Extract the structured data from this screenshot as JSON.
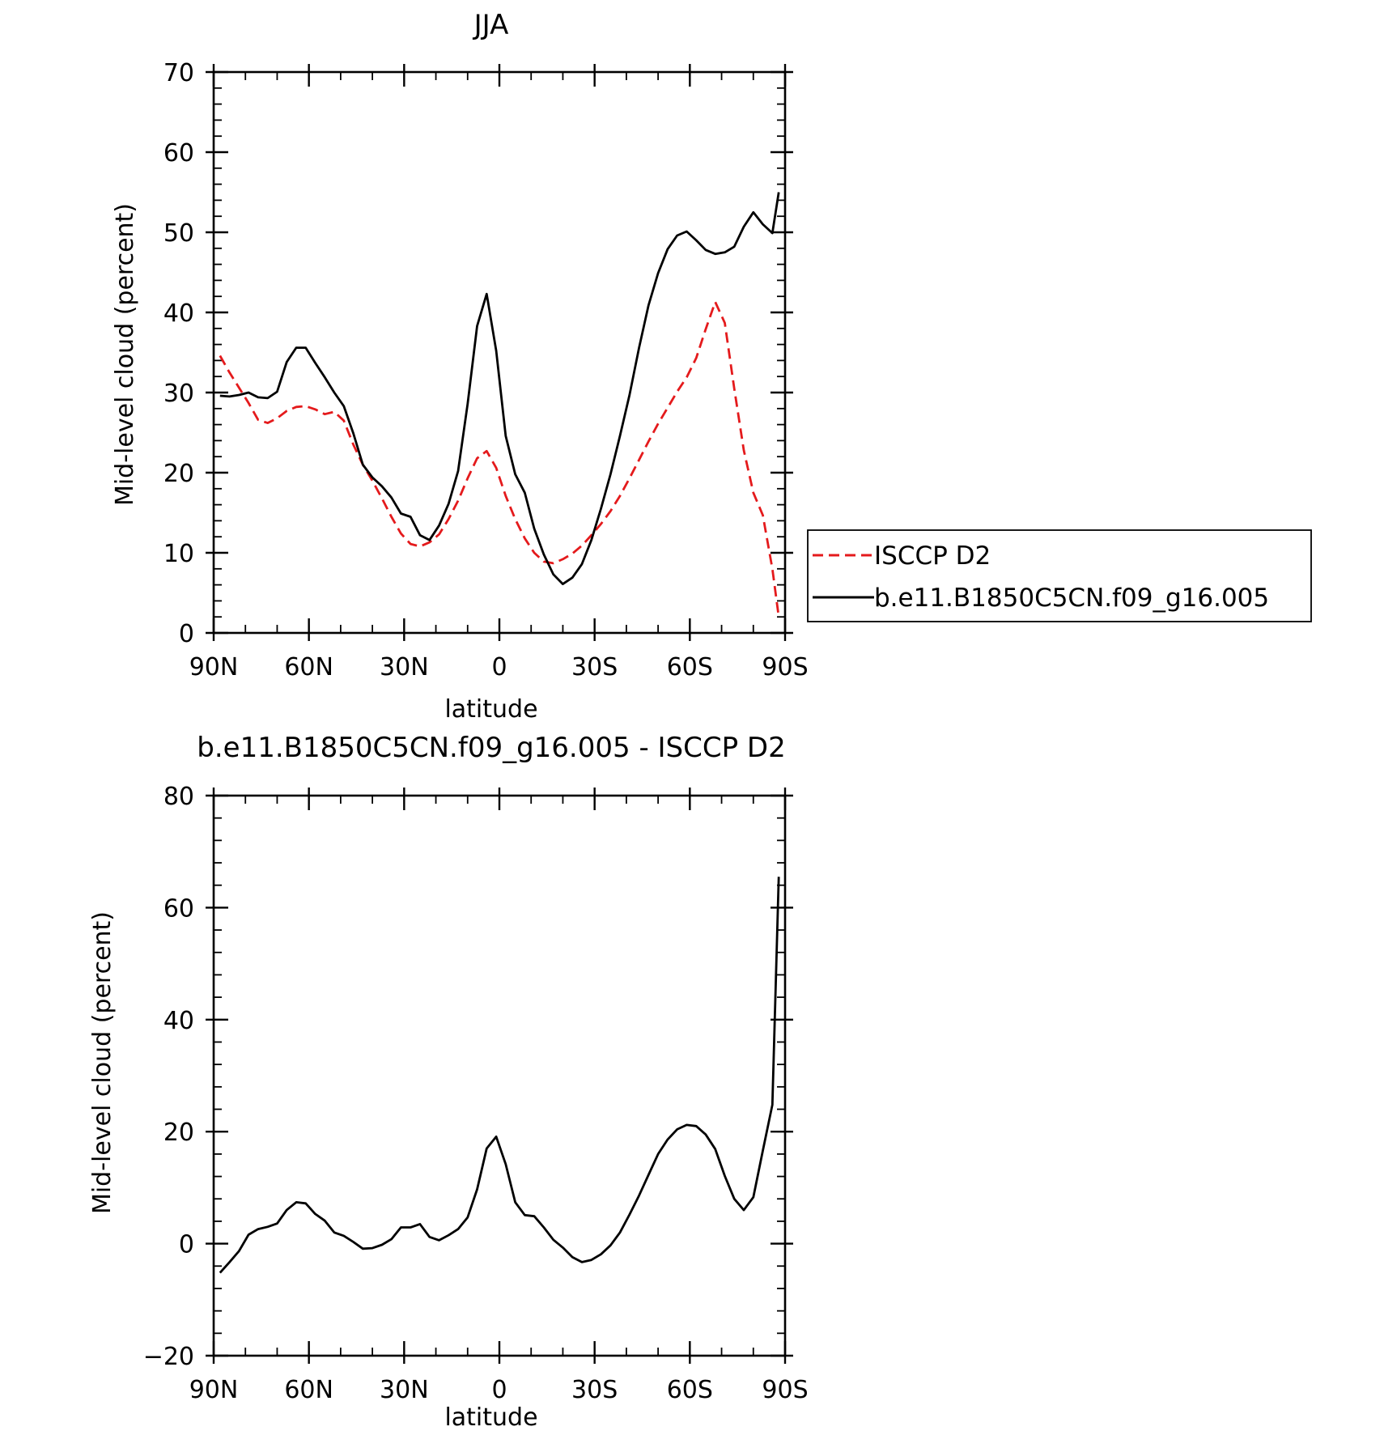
{
  "chart_data": [
    {
      "type": "line",
      "title": "JJA",
      "xlabel": "latitude",
      "ylabel": "Mid-level cloud (percent)",
      "x_ticks": [
        "90N",
        "60N",
        "30N",
        "0",
        "30S",
        "60S",
        "90S"
      ],
      "x_tick_values": [
        -90,
        -60,
        -30,
        0,
        30,
        60,
        90
      ],
      "xlim": [
        -90,
        90
      ],
      "y_ticks": [
        "0",
        "10",
        "20",
        "30",
        "40",
        "50",
        "60",
        "70"
      ],
      "y_tick_values": [
        0,
        10,
        20,
        30,
        40,
        50,
        60,
        70
      ],
      "ylim": [
        0,
        70
      ],
      "grid": false,
      "legend_position": "right",
      "series": [
        {
          "name": "ISCCP D2",
          "color": "#e41a1c",
          "dash": "dashed",
          "x": [
            -88,
            -85,
            -82,
            -79,
            -76,
            -73,
            -70,
            -67,
            -64,
            -61,
            -58,
            -55,
            -52,
            -49,
            -46,
            -43,
            -40,
            -37,
            -34,
            -31,
            -28,
            -25,
            -22,
            -19,
            -16,
            -13,
            -10,
            -7,
            -4,
            -1,
            2,
            5,
            8,
            11,
            14,
            17,
            20,
            23,
            26,
            29,
            32,
            35,
            38,
            41,
            44,
            47,
            50,
            53,
            56,
            59,
            62,
            65,
            68,
            71,
            74,
            77,
            80,
            83,
            86,
            88
          ],
          "y": [
            34.6,
            32.5,
            30.6,
            28.7,
            26.6,
            26.2,
            26.8,
            27.7,
            28.2,
            28.3,
            27.9,
            27.3,
            27.6,
            26.5,
            23.5,
            21.0,
            19.0,
            16.8,
            14.5,
            12.4,
            11.1,
            10.8,
            11.3,
            12.3,
            14.2,
            16.5,
            19.3,
            21.8,
            22.7,
            20.6,
            17.1,
            14.2,
            11.8,
            10.0,
            8.9,
            8.7,
            9.2,
            9.9,
            10.9,
            12.2,
            13.6,
            15.2,
            17.1,
            19.3,
            21.6,
            23.9,
            26.1,
            28.1,
            30.1,
            31.9,
            34.3,
            37.9,
            41.3,
            38.7,
            30.5,
            22.8,
            17.5,
            14.7,
            8.0,
            2.0
          ]
        },
        {
          "name": "b.e11.B1850C5CN.f09_g16.005",
          "color": "#000000",
          "dash": "solid",
          "x": [
            -88,
            -85,
            -82,
            -79,
            -76,
            -73,
            -70,
            -67,
            -64,
            -61,
            -58,
            -55,
            -52,
            -49,
            -46,
            -43,
            -40,
            -37,
            -34,
            -31,
            -28,
            -25,
            -22,
            -19,
            -16,
            -13,
            -10,
            -7,
            -4,
            -1,
            2,
            5,
            8,
            11,
            14,
            17,
            20,
            23,
            26,
            29,
            32,
            35,
            38,
            41,
            44,
            47,
            50,
            53,
            56,
            59,
            62,
            65,
            68,
            71,
            74,
            77,
            80,
            83,
            86,
            88
          ],
          "y": [
            29.6,
            29.5,
            29.7,
            30.0,
            29.4,
            29.3,
            30.1,
            33.8,
            35.6,
            35.6,
            33.7,
            31.9,
            30.0,
            28.3,
            24.9,
            21.0,
            19.4,
            18.3,
            16.9,
            14.9,
            14.5,
            12.2,
            11.6,
            13.4,
            16.1,
            20.2,
            28.6,
            38.3,
            42.3,
            35.2,
            24.6,
            19.8,
            17.5,
            13.0,
            9.8,
            7.3,
            6.1,
            6.9,
            8.6,
            11.6,
            15.5,
            19.8,
            24.6,
            29.7,
            35.6,
            40.9,
            44.9,
            47.9,
            49.6,
            50.1,
            49.0,
            47.8,
            47.3,
            47.5,
            48.2,
            50.7,
            52.5,
            51.0,
            49.9,
            55.0
          ]
        }
      ]
    },
    {
      "type": "line",
      "title": "b.e11.B1850C5CN.f09_g16.005 - ISCCP D2",
      "xlabel": "latitude",
      "ylabel": "Mid-level cloud (percent)",
      "x_ticks": [
        "90N",
        "60N",
        "30N",
        "0",
        "30S",
        "60S",
        "90S"
      ],
      "x_tick_values": [
        -90,
        -60,
        -30,
        0,
        30,
        60,
        90
      ],
      "xlim": [
        -90,
        90
      ],
      "y_ticks": [
        "−20",
        "0",
        "20",
        "40",
        "60",
        "80"
      ],
      "y_tick_values": [
        -20,
        0,
        20,
        40,
        60,
        80
      ],
      "ylim": [
        -20,
        80
      ],
      "grid": false,
      "series": [
        {
          "color": "#000000",
          "dash": "solid",
          "x": [
            -88,
            -85,
            -82,
            -79,
            -76,
            -73,
            -70,
            -67,
            -64,
            -61,
            -58,
            -55,
            -52,
            -49,
            -46,
            -43,
            -40,
            -37,
            -34,
            -31,
            -28,
            -25,
            -22,
            -19,
            -16,
            -13,
            -10,
            -7,
            -4,
            -1,
            2,
            5,
            8,
            11,
            14,
            17,
            20,
            23,
            26,
            29,
            32,
            35,
            38,
            41,
            44,
            47,
            50,
            53,
            56,
            59,
            62,
            65,
            68,
            71,
            74,
            77,
            80,
            83,
            86,
            88
          ],
          "y": [
            -5.2,
            -3.3,
            -1.3,
            1.6,
            2.6,
            3.0,
            3.6,
            6.0,
            7.4,
            7.2,
            5.3,
            4.1,
            2.0,
            1.4,
            0.3,
            -0.9,
            -0.8,
            -0.2,
            0.8,
            2.9,
            2.9,
            3.5,
            1.2,
            0.6,
            1.5,
            2.6,
            4.7,
            9.7,
            17.0,
            19.1,
            14.2,
            7.4,
            5.1,
            4.9,
            2.9,
            0.7,
            -0.7,
            -2.4,
            -3.3,
            -2.9,
            -1.9,
            -0.3,
            2.0,
            5.2,
            8.6,
            12.3,
            16.0,
            18.6,
            20.4,
            21.2,
            21.0,
            19.5,
            16.9,
            12.1,
            8.0,
            6.0,
            8.3,
            16.6,
            24.8,
            65.5
          ],
          "x_extra": [],
          "y_extra": []
        }
      ]
    }
  ]
}
